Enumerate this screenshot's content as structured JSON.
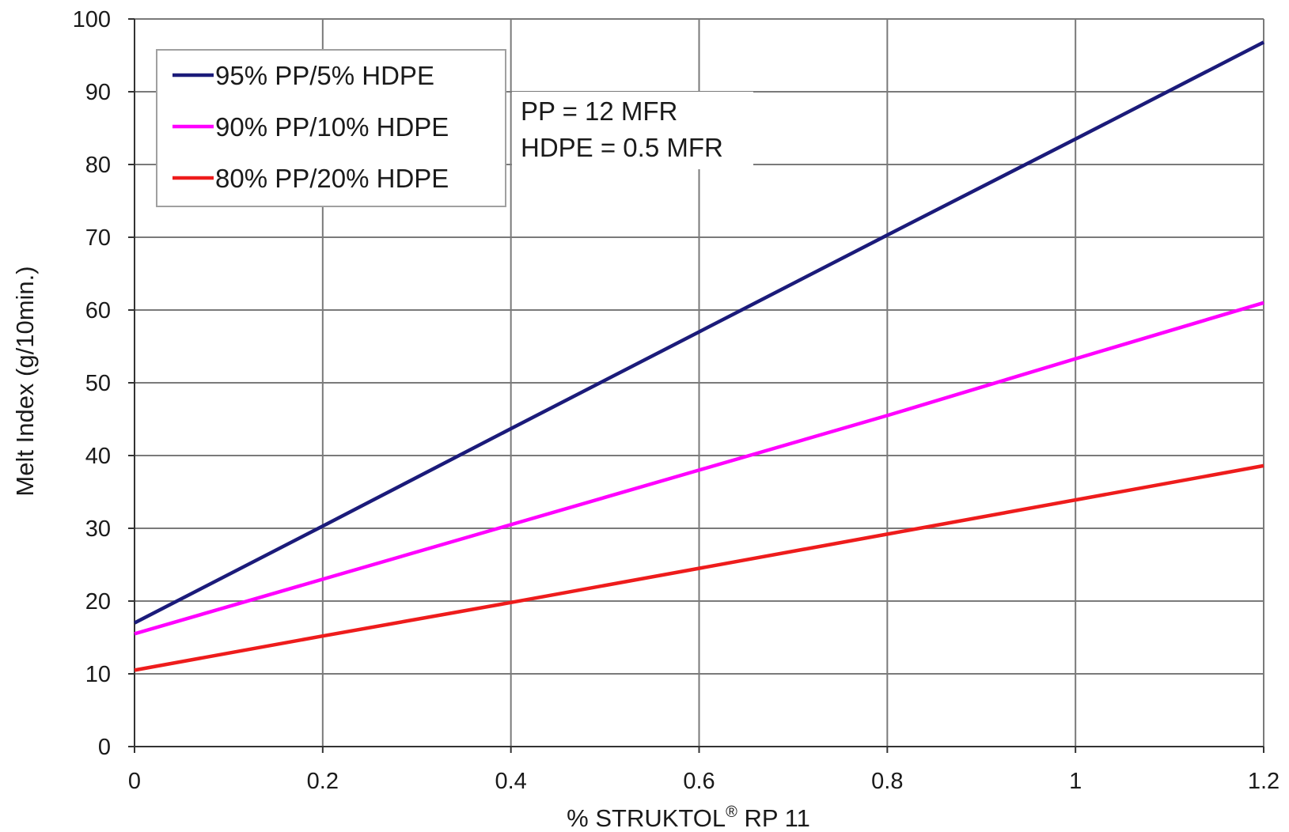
{
  "chart_data": {
    "type": "line",
    "xlabel": "% STRUKTOL",
    "xlabel_mark": "®",
    "xlabel_suffix": " RP 11",
    "ylabel": "Melt Index (g/10min.)",
    "xlim": [
      0,
      1.2
    ],
    "ylim": [
      0,
      100
    ],
    "x_ticks": [
      "0",
      "0.2",
      "0.4",
      "0.6",
      "0.8",
      "1",
      "1.2"
    ],
    "y_ticks": [
      "0",
      "10",
      "20",
      "30",
      "40",
      "50",
      "60",
      "70",
      "80",
      "90",
      "100"
    ],
    "grid": true,
    "legend_position": "top-left",
    "annotations": [
      "PP = 12 MFR",
      "HDPE = 0.5 MFR"
    ],
    "series": [
      {
        "name": "95% PP/5% HDPE",
        "color": "#1b1b7a",
        "x": [
          0,
          0.2,
          0.4,
          0.6,
          0.8,
          1.0,
          1.2
        ],
        "y": [
          17,
          30.3,
          43.7,
          57,
          70.3,
          83.5,
          96.8
        ]
      },
      {
        "name": "90% PP/10% HDPE",
        "color": "#ff00ff",
        "x": [
          0,
          0.2,
          0.4,
          0.6,
          0.8,
          1.0,
          1.2
        ],
        "y": [
          15.5,
          23,
          30.5,
          38,
          45.5,
          53.3,
          61
        ]
      },
      {
        "name": "80% PP/20% HDPE",
        "color": "#ee1c1c",
        "x": [
          0,
          0.2,
          0.4,
          0.6,
          0.8,
          1.0,
          1.2
        ],
        "y": [
          10.5,
          15.2,
          19.8,
          24.5,
          29.2,
          33.9,
          38.6
        ]
      }
    ]
  }
}
